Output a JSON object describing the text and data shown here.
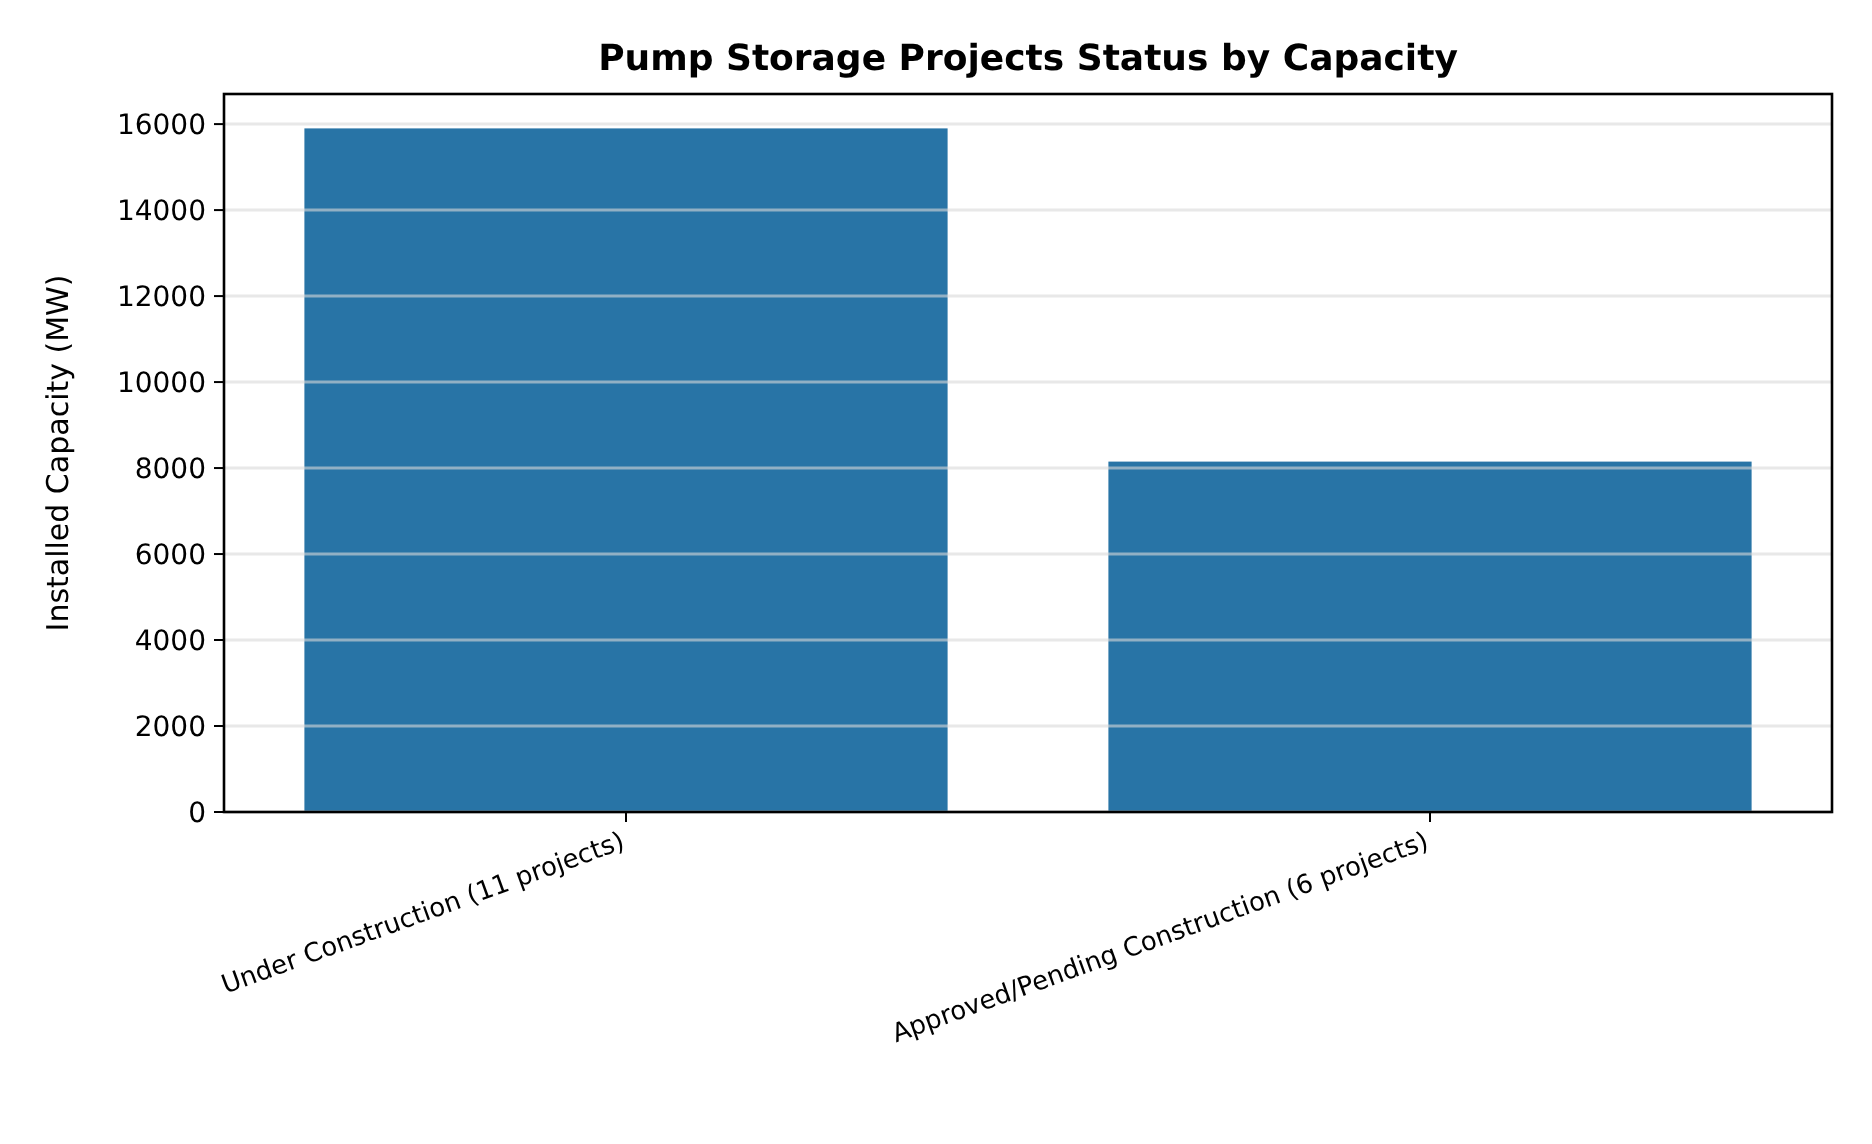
{
  "chart_data": {
    "type": "bar",
    "title": "Pump Storage Projects Status by Capacity",
    "ylabel": "Installed Capacity (MW)",
    "categories": [
      "Under Construction (11 projects)",
      "Approved/Pending Construction (6 projects)"
    ],
    "values": [
      15900,
      8150
    ],
    "color": "#2874a6",
    "ylim": [
      0,
      16700
    ],
    "yticks": [
      0,
      2000,
      4000,
      6000,
      8000,
      10000,
      12000,
      14000,
      16000
    ],
    "grid": "y"
  }
}
